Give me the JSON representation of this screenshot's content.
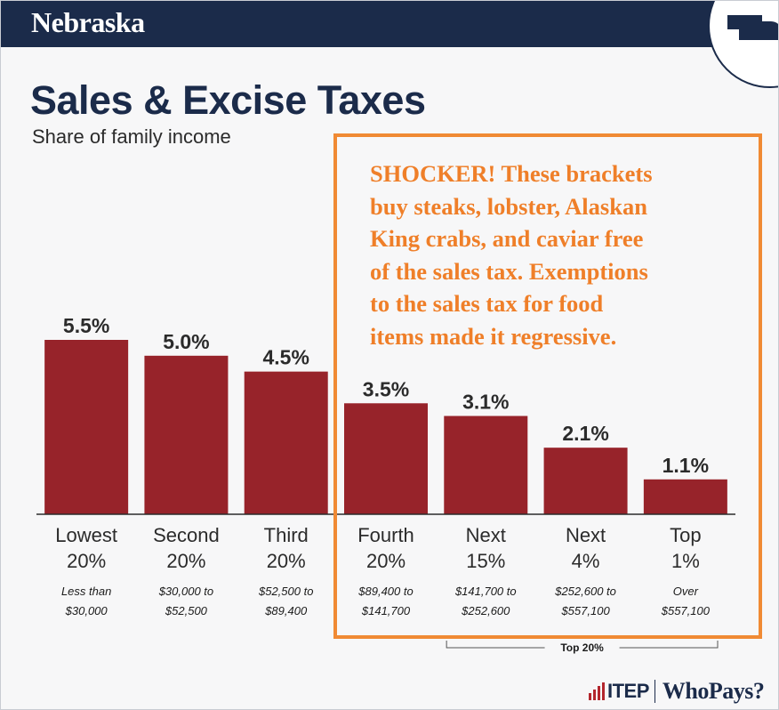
{
  "header": {
    "state": "Nebraska"
  },
  "title": "Sales & Excise Taxes",
  "subtitle": "Share of family income",
  "callout": {
    "text": "SHOCKER! These brackets\nbuy steaks, lobster, Alaskan\nKing crabs, and caviar free\nof the sales tax. Exemptions\nto the sales tax for food\nitems made it regressive."
  },
  "chart_data": {
    "type": "bar",
    "title": "Sales & Excise Taxes",
    "subtitle": "Share of family income",
    "xlabel": "",
    "ylabel": "",
    "ylim": [
      0,
      5.5
    ],
    "grid": false,
    "categories": [
      "Lowest 20%",
      "Second 20%",
      "Third 20%",
      "Fourth 20%",
      "Next 15%",
      "Next 4%",
      "Top 1%"
    ],
    "category_lines": [
      [
        "Lowest",
        "20%"
      ],
      [
        "Second",
        "20%"
      ],
      [
        "Third",
        "20%"
      ],
      [
        "Fourth",
        "20%"
      ],
      [
        "Next",
        "15%"
      ],
      [
        "Next",
        "4%"
      ],
      [
        "Top",
        "1%"
      ]
    ],
    "income_ranges": [
      [
        "Less than",
        "$30,000"
      ],
      [
        "$30,000 to",
        "$52,500"
      ],
      [
        "$52,500 to",
        "$89,400"
      ],
      [
        "$89,400 to",
        "$141,700"
      ],
      [
        "$141,700 to",
        "$252,600"
      ],
      [
        "$252,600 to",
        "$557,100"
      ],
      [
        "Over",
        "$557,100"
      ]
    ],
    "values": [
      5.5,
      5.0,
      4.5,
      3.5,
      3.1,
      2.1,
      1.1
    ],
    "value_labels": [
      "5.5%",
      "5.0%",
      "4.5%",
      "3.5%",
      "3.1%",
      "2.1%",
      "1.1%"
    ],
    "annotations": [
      {
        "text": "Top 20%",
        "spans": [
          "Next 15%",
          "Top 1%"
        ]
      }
    ],
    "colors": {
      "bar": "#97232a",
      "axis": "#2b2b2b"
    }
  },
  "footer": {
    "logo_itep": "ITEP",
    "logo_whopays": "WhoPays?"
  }
}
